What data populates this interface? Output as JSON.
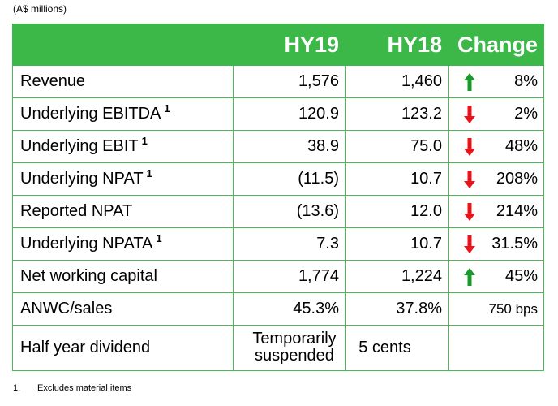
{
  "units_note": "(A$ millions)",
  "header": {
    "hy19": "HY19",
    "hy18": "HY18",
    "change": "Change"
  },
  "rows": [
    {
      "label": "Revenue",
      "sup": "",
      "hy19": "1,576",
      "hy18": "1,460",
      "direction": "up",
      "change": "8%"
    },
    {
      "label": "Underlying EBITDA",
      "sup": "1",
      "hy19": "120.9",
      "hy18": "123.2",
      "direction": "down",
      "change": "2%"
    },
    {
      "label": "Underlying EBIT",
      "sup": "1",
      "hy19": "38.9",
      "hy18": "75.0",
      "direction": "down",
      "change": "48%"
    },
    {
      "label": "Underlying NPAT",
      "sup": "1",
      "hy19": "(11.5)",
      "hy18": "10.7",
      "direction": "down",
      "change": "208%"
    },
    {
      "label": "Reported NPAT",
      "sup": "",
      "hy19": "(13.6)",
      "hy18": "12.0",
      "direction": "down",
      "change": "214%"
    },
    {
      "label": "Underlying NPATA",
      "sup": "1",
      "hy19": "7.3",
      "hy18": "10.7",
      "direction": "down",
      "change": "31.5%"
    },
    {
      "label": "Net working capital",
      "sup": "",
      "hy19": "1,774",
      "hy18": "1,224",
      "direction": "up",
      "change": "45%"
    },
    {
      "label": "ANWC/sales",
      "sup": "",
      "hy19": "45.3%",
      "hy18": "37.8%",
      "direction": "none",
      "change": "750 bps"
    }
  ],
  "dividend": {
    "label": "Half year dividend",
    "hy19_line1": "Temporarily",
    "hy19_line2": "suspended",
    "hy18": "5 cents",
    "change": ""
  },
  "footnote": {
    "number": "1.",
    "text": "Excludes material items"
  },
  "colors": {
    "header_bg": "#3cb848",
    "border": "#4cb856",
    "arrow_up": "#1a9a2a",
    "arrow_down": "#e8141c"
  }
}
